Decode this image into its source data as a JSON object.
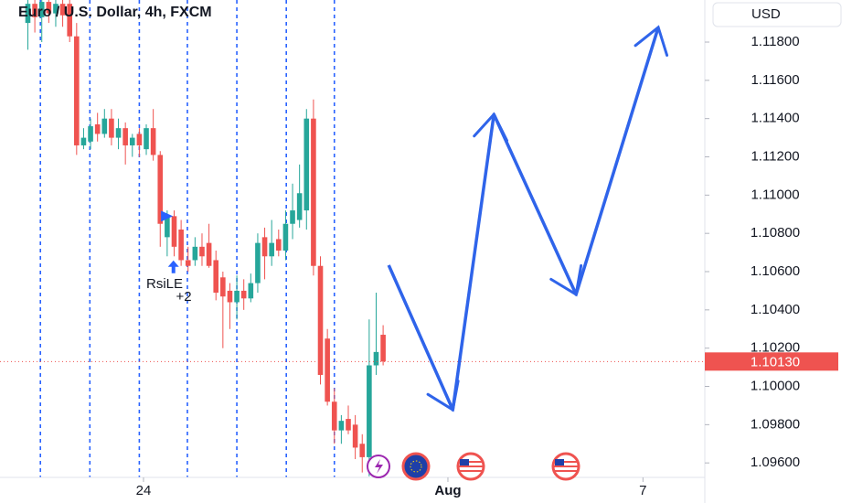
{
  "chart_data": {
    "type": "candlestick",
    "title": "Euro / U.S. Dollar, 4h, FXCM",
    "currency": "USD",
    "up_color": "#26a69a",
    "down_color": "#ef5350",
    "xlim": [
      -4,
      97.05
    ],
    "ylim": [
      1.0951,
      1.1202
    ],
    "xticks": [
      {
        "value": 16.6,
        "label": "24"
      },
      {
        "value": 60.3,
        "label": "Aug"
      },
      {
        "value": 88.3,
        "label": "7"
      }
    ],
    "yticks": [
      {
        "value": 1.096,
        "label": "1.09600"
      },
      {
        "value": 1.098,
        "label": "1.09800"
      },
      {
        "value": 1.1,
        "label": "1.10000"
      },
      {
        "value": 1.102,
        "label": "1.10200"
      },
      {
        "value": 1.104,
        "label": "1.10400"
      },
      {
        "value": 1.106,
        "label": "1.10600"
      },
      {
        "value": 1.108,
        "label": "1.10800"
      },
      {
        "value": 1.11,
        "label": "1.11000"
      },
      {
        "value": 1.112,
        "label": "1.11200"
      },
      {
        "value": 1.114,
        "label": "1.11400"
      },
      {
        "value": 1.116,
        "label": "1.11600"
      },
      {
        "value": 1.118,
        "label": "1.11800"
      }
    ],
    "last_price": {
      "value": 1.1013,
      "label": "1.10130"
    },
    "session_lines": [
      1.8,
      8.9,
      16,
      22.9,
      30,
      37.1,
      44
    ],
    "session_color": "#2962ff",
    "candles": {
      "x": [
        0,
        1,
        2,
        3,
        4,
        5,
        6,
        7,
        8,
        9,
        10,
        11,
        12,
        13,
        14,
        15,
        16,
        17,
        18,
        19,
        20,
        21,
        22,
        23,
        24,
        25,
        26,
        27,
        28,
        29,
        30,
        31,
        32,
        33,
        34,
        35,
        36,
        37,
        38,
        39,
        40,
        41,
        42,
        43,
        44,
        45,
        46,
        47,
        48,
        49,
        50,
        51
      ],
      "open": [
        1.119,
        1.12,
        1.1193,
        1.1201,
        1.1195,
        1.12,
        1.12,
        1.1183,
        1.1126,
        1.1128,
        1.1137,
        1.1132,
        1.114,
        1.113,
        1.1135,
        1.1126,
        1.1132,
        1.1124,
        1.1135,
        1.1121,
        1.1078,
        1.1089,
        1.1082,
        1.1066,
        1.1066,
        1.1073,
        1.1075,
        1.1066,
        1.1057,
        1.105,
        1.1044,
        1.105,
        1.1046,
        1.1054,
        1.1078,
        1.1068,
        1.1077,
        1.1071,
        1.1085,
        1.1087,
        1.1092,
        1.114,
        1.1063,
        1.1025,
        1.0992,
        1.0977,
        1.0983,
        1.098,
        1.097,
        1.0963,
        1.1011,
        1.1027
      ],
      "high": [
        1.1202,
        1.1202,
        1.1202,
        1.1202,
        1.1202,
        1.1202,
        1.1202,
        1.119,
        1.1135,
        1.114,
        1.1143,
        1.1145,
        1.1145,
        1.114,
        1.1138,
        1.1132,
        1.1135,
        1.1137,
        1.1145,
        1.1123,
        1.1092,
        1.1092,
        1.1087,
        1.1073,
        1.1078,
        1.108,
        1.1085,
        1.1071,
        1.106,
        1.1054,
        1.1058,
        1.1056,
        1.1059,
        1.108,
        1.1083,
        1.1087,
        1.1082,
        1.1092,
        1.1106,
        1.1116,
        1.1145,
        1.115,
        1.1068,
        1.103,
        1.0999,
        1.0985,
        1.099,
        1.0985,
        1.0975,
        1.1035,
        1.1049,
        1.1032
      ],
      "low": [
        1.1176,
        1.1185,
        1.118,
        1.119,
        1.1188,
        1.1188,
        1.118,
        1.1121,
        1.1124,
        1.1124,
        1.1128,
        1.113,
        1.1126,
        1.1124,
        1.1116,
        1.112,
        1.112,
        1.1121,
        1.1118,
        1.1073,
        1.1068,
        1.1068,
        1.1063,
        1.106,
        1.1063,
        1.1063,
        1.1062,
        1.1045,
        1.102,
        1.103,
        1.1035,
        1.104,
        1.1044,
        1.1049,
        1.1056,
        1.1063,
        1.1068,
        1.1066,
        1.1077,
        1.1083,
        1.1082,
        1.1058,
        1.1001,
        1.099,
        1.097,
        1.097,
        1.0975,
        1.0962,
        1.0955,
        1.0953,
        1.1006,
        1.1011
      ],
      "close": [
        1.12,
        1.1193,
        1.1201,
        1.1195,
        1.12,
        1.1194,
        1.1183,
        1.1126,
        1.113,
        1.1136,
        1.1132,
        1.114,
        1.113,
        1.1135,
        1.1126,
        1.113,
        1.1126,
        1.1135,
        1.1121,
        1.1085,
        1.1089,
        1.1073,
        1.1066,
        1.1063,
        1.1073,
        1.1068,
        1.1063,
        1.1049,
        1.1047,
        1.1044,
        1.105,
        1.1046,
        1.1054,
        1.1075,
        1.1068,
        1.1075,
        1.1071,
        1.1085,
        1.1092,
        1.1101,
        1.114,
        1.1063,
        1.1006,
        1.0992,
        1.0977,
        1.0982,
        1.0977,
        1.0968,
        1.0963,
        1.1011,
        1.1018,
        1.1013
      ]
    },
    "markers": {
      "triangle": {
        "x": 19.9,
        "y": 1.1089
      },
      "arrow_up": {
        "x": 20.9,
        "y": 1.1063
      },
      "color": "#2962ff"
    },
    "annotations": [
      "RsiLE",
      "+2"
    ],
    "drawing": {
      "color": "#2f64ea",
      "x": [
        51.8,
        61.0,
        66.9,
        78.7,
        90.5
      ],
      "y": [
        1.10634,
        1.09878,
        1.11422,
        1.10481,
        1.11877
      ]
    }
  }
}
